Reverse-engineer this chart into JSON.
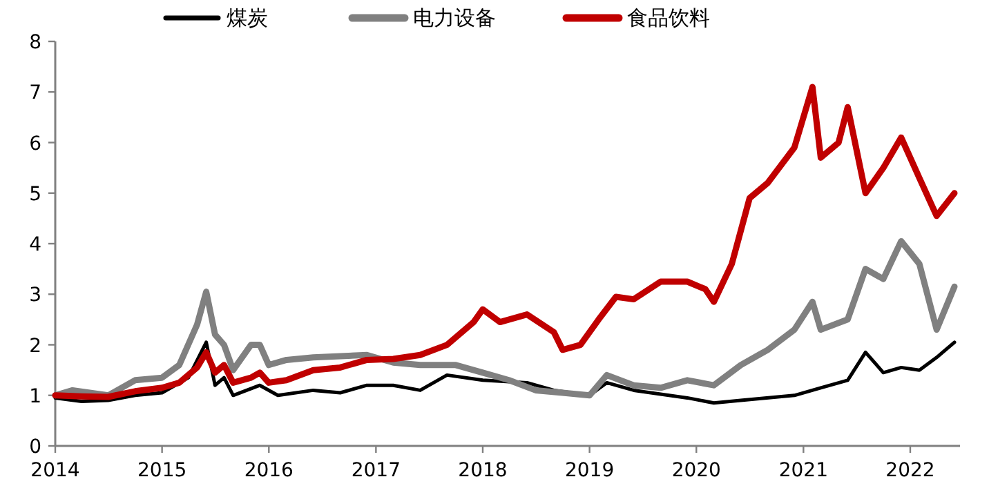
{
  "chart_data": {
    "type": "line",
    "xlim": [
      "2014-01-01",
      "2022-06-20"
    ],
    "xticks": [
      {
        "value": "2014-01-01",
        "label": "2014"
      },
      {
        "value": "2015-01-01",
        "label": "2015"
      },
      {
        "value": "2016-01-01",
        "label": "2016"
      },
      {
        "value": "2017-01-01",
        "label": "2017"
      },
      {
        "value": "2018-01-01",
        "label": "2018"
      },
      {
        "value": "2019-01-01",
        "label": "2019"
      },
      {
        "value": "2020-01-01",
        "label": "2020"
      },
      {
        "value": "2021-01-01",
        "label": "2021"
      },
      {
        "value": "2022-01-01",
        "label": "2022"
      }
    ],
    "ylim": [
      0,
      8
    ],
    "yticks": [
      0,
      1,
      2,
      3,
      4,
      5,
      6,
      7,
      8
    ],
    "grid": false,
    "legend": "top",
    "marker": "none",
    "line_style": "solid",
    "series": [
      {
        "name": "煤炭",
        "color": "#000000",
        "x": [
          "2014-01",
          "2014-04",
          "2014-07",
          "2014-10",
          "2015-01",
          "2015-04",
          "2015-06",
          "2015-07",
          "2015-08",
          "2015-09",
          "2015-12",
          "2016-02",
          "2016-06",
          "2016-09",
          "2016-12",
          "2017-03",
          "2017-06",
          "2017-09",
          "2018-01",
          "2018-06",
          "2018-09",
          "2019-01",
          "2019-03",
          "2019-06",
          "2019-12",
          "2020-03",
          "2020-06",
          "2020-12",
          "2021-03",
          "2021-06",
          "2021-08",
          "2021-10",
          "2021-12",
          "2022-02",
          "2022-04",
          "2022-06"
        ],
        "values": [
          0.95,
          0.88,
          0.9,
          1.0,
          1.05,
          1.35,
          2.05,
          1.2,
          1.35,
          1.0,
          1.2,
          1.0,
          1.1,
          1.05,
          1.2,
          1.2,
          1.1,
          1.4,
          1.3,
          1.25,
          1.1,
          1.0,
          1.25,
          1.1,
          0.95,
          0.85,
          0.9,
          1.0,
          1.15,
          1.3,
          1.85,
          1.45,
          1.55,
          1.5,
          1.75,
          2.05
        ]
      },
      {
        "name": "电力设备",
        "color": "#808080",
        "x": [
          "2014-01",
          "2014-03",
          "2014-07",
          "2014-10",
          "2015-01",
          "2015-03",
          "2015-05",
          "2015-06",
          "2015-07",
          "2015-08",
          "2015-09",
          "2015-11",
          "2015-12",
          "2016-01",
          "2016-03",
          "2016-06",
          "2016-12",
          "2017-03",
          "2017-06",
          "2017-10",
          "2018-01",
          "2018-04",
          "2018-07",
          "2018-10",
          "2019-01",
          "2019-03",
          "2019-06",
          "2019-09",
          "2019-12",
          "2020-03",
          "2020-06",
          "2020-09",
          "2020-12",
          "2021-02",
          "2021-03",
          "2021-06",
          "2021-08",
          "2021-10",
          "2021-12",
          "2022-02",
          "2022-04",
          "2022-06"
        ],
        "values": [
          1.0,
          1.1,
          1.0,
          1.3,
          1.35,
          1.6,
          2.4,
          3.05,
          2.2,
          2.0,
          1.5,
          2.0,
          2.0,
          1.6,
          1.7,
          1.75,
          1.8,
          1.65,
          1.6,
          1.6,
          1.45,
          1.3,
          1.1,
          1.05,
          1.0,
          1.4,
          1.2,
          1.15,
          1.3,
          1.2,
          1.6,
          1.9,
          2.3,
          2.85,
          2.3,
          2.5,
          3.5,
          3.3,
          4.05,
          3.6,
          2.3,
          3.15
        ]
      },
      {
        "name": "食品饮料",
        "color": "#c00000",
        "x": [
          "2014-01",
          "2014-04",
          "2014-07",
          "2014-10",
          "2015-01",
          "2015-03",
          "2015-05",
          "2015-06",
          "2015-07",
          "2015-08",
          "2015-09",
          "2015-11",
          "2015-12",
          "2016-01",
          "2016-03",
          "2016-06",
          "2016-09",
          "2016-12",
          "2017-03",
          "2017-06",
          "2017-09",
          "2017-12",
          "2018-01",
          "2018-03",
          "2018-06",
          "2018-09",
          "2018-10",
          "2018-12",
          "2019-02",
          "2019-04",
          "2019-06",
          "2019-09",
          "2019-12",
          "2020-02",
          "2020-03",
          "2020-05",
          "2020-07",
          "2020-09",
          "2020-12",
          "2021-02",
          "2021-03",
          "2021-05",
          "2021-06",
          "2021-08",
          "2021-10",
          "2021-12",
          "2022-02",
          "2022-04",
          "2022-06"
        ],
        "values": [
          1.0,
          0.98,
          0.97,
          1.08,
          1.15,
          1.25,
          1.55,
          1.85,
          1.45,
          1.6,
          1.25,
          1.35,
          1.45,
          1.25,
          1.3,
          1.5,
          1.55,
          1.7,
          1.72,
          1.8,
          2.0,
          2.45,
          2.7,
          2.45,
          2.6,
          2.25,
          1.9,
          2.0,
          2.5,
          2.95,
          2.9,
          3.25,
          3.25,
          3.1,
          2.85,
          3.6,
          4.9,
          5.2,
          5.9,
          7.1,
          5.7,
          6.0,
          6.7,
          5.0,
          5.5,
          6.1,
          5.3,
          4.55,
          5.0
        ]
      }
    ]
  }
}
